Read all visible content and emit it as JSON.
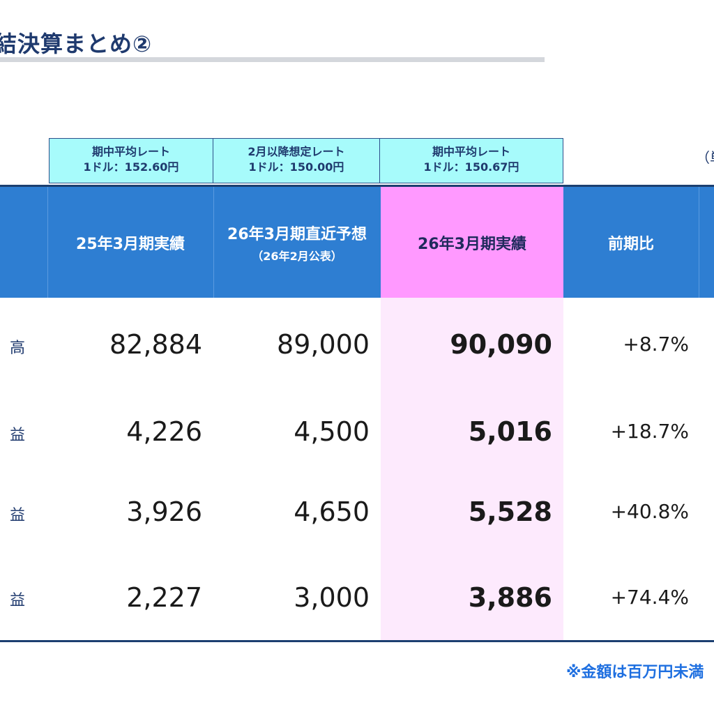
{
  "title": "結決算まとめ②",
  "unit_label": "（単",
  "rates": [
    {
      "line1": "期中平均レート",
      "line2": "1ドル：152.60円"
    },
    {
      "line1": "2月以降想定レート",
      "line2": "1ドル：150.00円"
    },
    {
      "line1": "期中平均レート",
      "line2": "1ドル：150.67円"
    }
  ],
  "headers": {
    "col1": "25年3月期実績",
    "col2": "26年3月期直近予想",
    "col2_sub": "（26年2月公表）",
    "col3": "26年3月期実績",
    "col4": "前期比"
  },
  "rows": [
    {
      "label": "高",
      "c1": "82,884",
      "c2": "89,000",
      "c3": "90,090",
      "c4": "+8.7%"
    },
    {
      "label": "益",
      "c1": "4,226",
      "c2": "4,500",
      "c3": "5,016",
      "c4": "+18.7%"
    },
    {
      "label": "益",
      "c1": "3,926",
      "c2": "4,650",
      "c3": "5,528",
      "c4": "+40.8%"
    },
    {
      "label": "益",
      "c1": "2,227",
      "c2": "3,000",
      "c3": "3,886",
      "c4": "+74.4%"
    }
  ],
  "note": "※金額は百万円未満"
}
